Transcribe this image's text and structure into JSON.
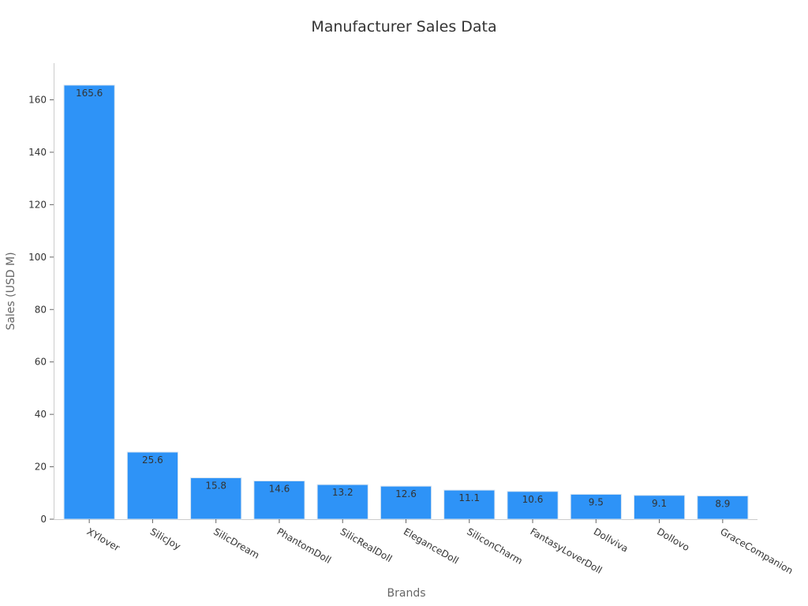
{
  "chart_data": {
    "type": "bar",
    "title": "Manufacturer Sales Data",
    "xlabel": "Brands",
    "ylabel": "Sales (USD M)",
    "categories": [
      "XYlover",
      "SilicJoy",
      "SilicDream",
      "PhantomDoll",
      "SilicRealDoll",
      "EleganceDoll",
      "SiliconCharm",
      "FantasyLoverDoll",
      "Dollviva",
      "Dollovo",
      "GraceCompanion"
    ],
    "values": [
      165.6,
      25.6,
      15.8,
      14.6,
      13.2,
      12.6,
      11.1,
      10.6,
      9.5,
      9.1,
      8.9
    ],
    "ylim": [
      0,
      174
    ],
    "yticks": [
      0,
      20,
      40,
      60,
      80,
      100,
      120,
      140,
      160
    ],
    "grid": false,
    "bar_color": "#2e93f7",
    "bar_edge_color": "#d8e4f0"
  }
}
